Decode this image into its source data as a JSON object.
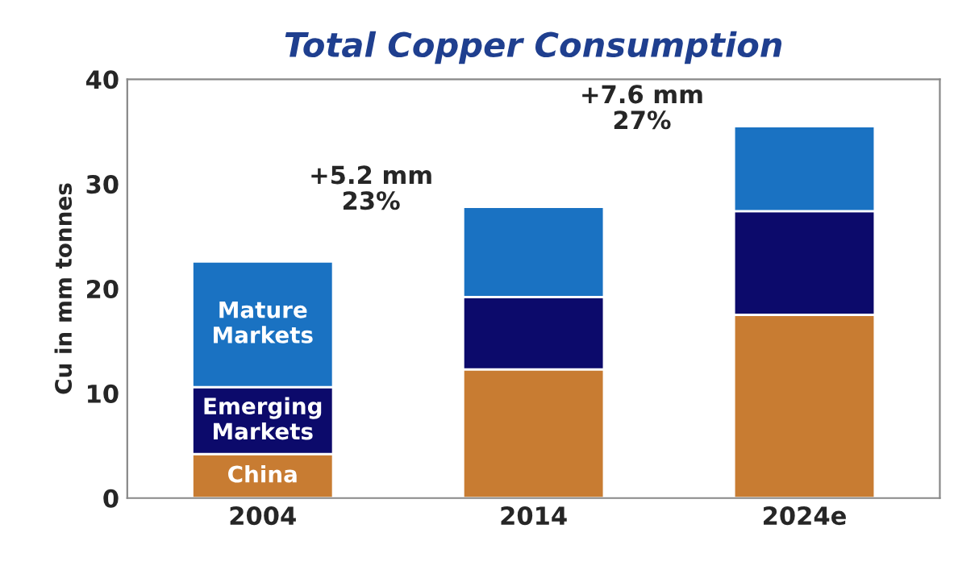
{
  "chart_data": {
    "type": "bar",
    "title": "Total Copper Consumption",
    "ylabel": "Cu in mm tonnes",
    "categories": [
      "2004",
      "2014",
      "2024e"
    ],
    "stacked": true,
    "series": [
      {
        "name": "China",
        "color": "#c87c32",
        "values": [
          4.2,
          12.3,
          17.5
        ]
      },
      {
        "name": "Emerging Markets",
        "color": "#0c0a6b",
        "values": [
          6.4,
          6.9,
          9.9
        ]
      },
      {
        "name": "Mature Markets",
        "color": "#1a72c2",
        "values": [
          12.0,
          8.6,
          8.1
        ]
      }
    ],
    "ylim": [
      0,
      40
    ],
    "yticks": [
      0,
      10,
      20,
      30,
      40
    ],
    "grid": false,
    "legend": false,
    "annotations": [
      "+5.2 mm\n23%",
      "+7.6 mm\n27%"
    ]
  }
}
